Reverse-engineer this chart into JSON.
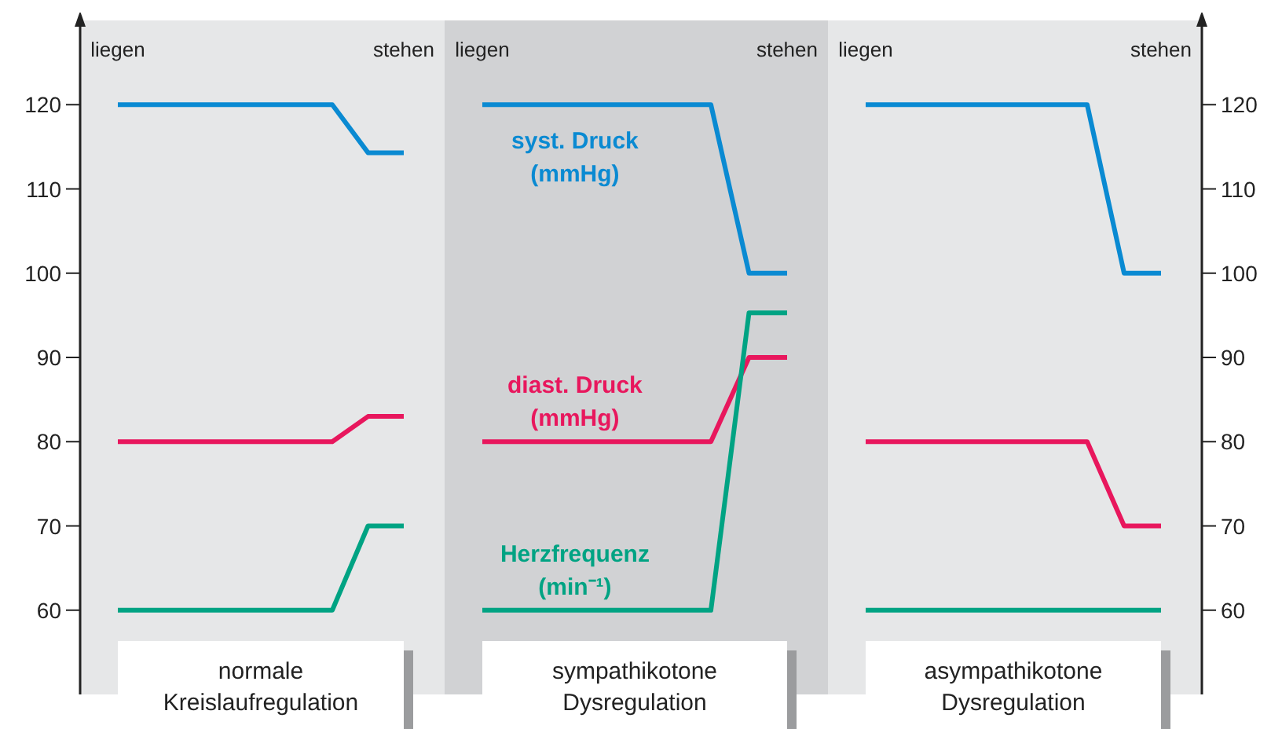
{
  "chart_data": [
    {
      "type": "line",
      "title": "normale Kreislaufregulation",
      "categories": [
        "liegen",
        null,
        null,
        null,
        null,
        null,
        null,
        null,
        "stehen"
      ],
      "ylim": [
        50,
        130
      ],
      "yticks": [
        60,
        70,
        80,
        90,
        100,
        110,
        120
      ],
      "grid": false,
      "marker": "none",
      "line_style": "solid",
      "series": [
        {
          "color": "#0a8ad2",
          "values": [
            120,
            120,
            120,
            120,
            120,
            120,
            120,
            114.3,
            114.3
          ]
        },
        {
          "color": "#e8175d",
          "values": [
            80,
            80,
            80,
            80,
            80,
            80,
            80,
            83,
            83
          ]
        },
        {
          "color": "#00a383",
          "values": [
            60,
            60,
            60,
            60,
            60,
            60,
            60,
            70,
            70
          ]
        }
      ]
    },
    {
      "type": "line",
      "title": "sympathikotone Dysregulation",
      "categories": [
        "liegen",
        null,
        null,
        null,
        null,
        null,
        null,
        null,
        "stehen"
      ],
      "ylim": [
        50,
        130
      ],
      "tick_labels": "x",
      "grid": false,
      "marker": "none",
      "line_style": "solid",
      "bands": [
        {
          "axis": "x",
          "from": "liegen",
          "to": "stehen",
          "color": "#d1d2d4"
        }
      ],
      "series": [
        {
          "name": "syst. Druck (mmHg)",
          "color": "#0a8ad2",
          "values": [
            120,
            120,
            120,
            120,
            120,
            120,
            120,
            100,
            100
          ]
        },
        {
          "name": "diast. Druck (mmHg)",
          "color": "#e8175d",
          "values": [
            80,
            80,
            80,
            80,
            80,
            80,
            80,
            90,
            90
          ]
        },
        {
          "name": "Herzfrequenz (min⁻¹)",
          "color": "#00a383",
          "values": [
            60,
            60,
            60,
            60,
            60,
            60,
            60,
            95.3,
            95.3
          ]
        }
      ]
    },
    {
      "type": "line",
      "title": "asympathikotone Dysregulation",
      "categories": [
        "liegen",
        null,
        null,
        null,
        null,
        null,
        null,
        null,
        "stehen"
      ],
      "y2lim": [
        50,
        130
      ],
      "y2ticks": [
        60,
        70,
        80,
        90,
        100,
        110,
        120
      ],
      "grid": false,
      "marker": "none",
      "line_style": "solid",
      "series": [
        {
          "axis": "y2",
          "color": "#0a8ad2",
          "values": [
            120,
            120,
            120,
            120,
            120,
            120,
            120,
            100,
            100
          ]
        },
        {
          "axis": "y2",
          "color": "#e8175d",
          "values": [
            80,
            80,
            80,
            80,
            80,
            80,
            80,
            70,
            70
          ]
        },
        {
          "axis": "y2",
          "color": "#00a383",
          "values": [
            60,
            60,
            60,
            60,
            60,
            60,
            60,
            60,
            60
          ]
        }
      ]
    }
  ]
}
